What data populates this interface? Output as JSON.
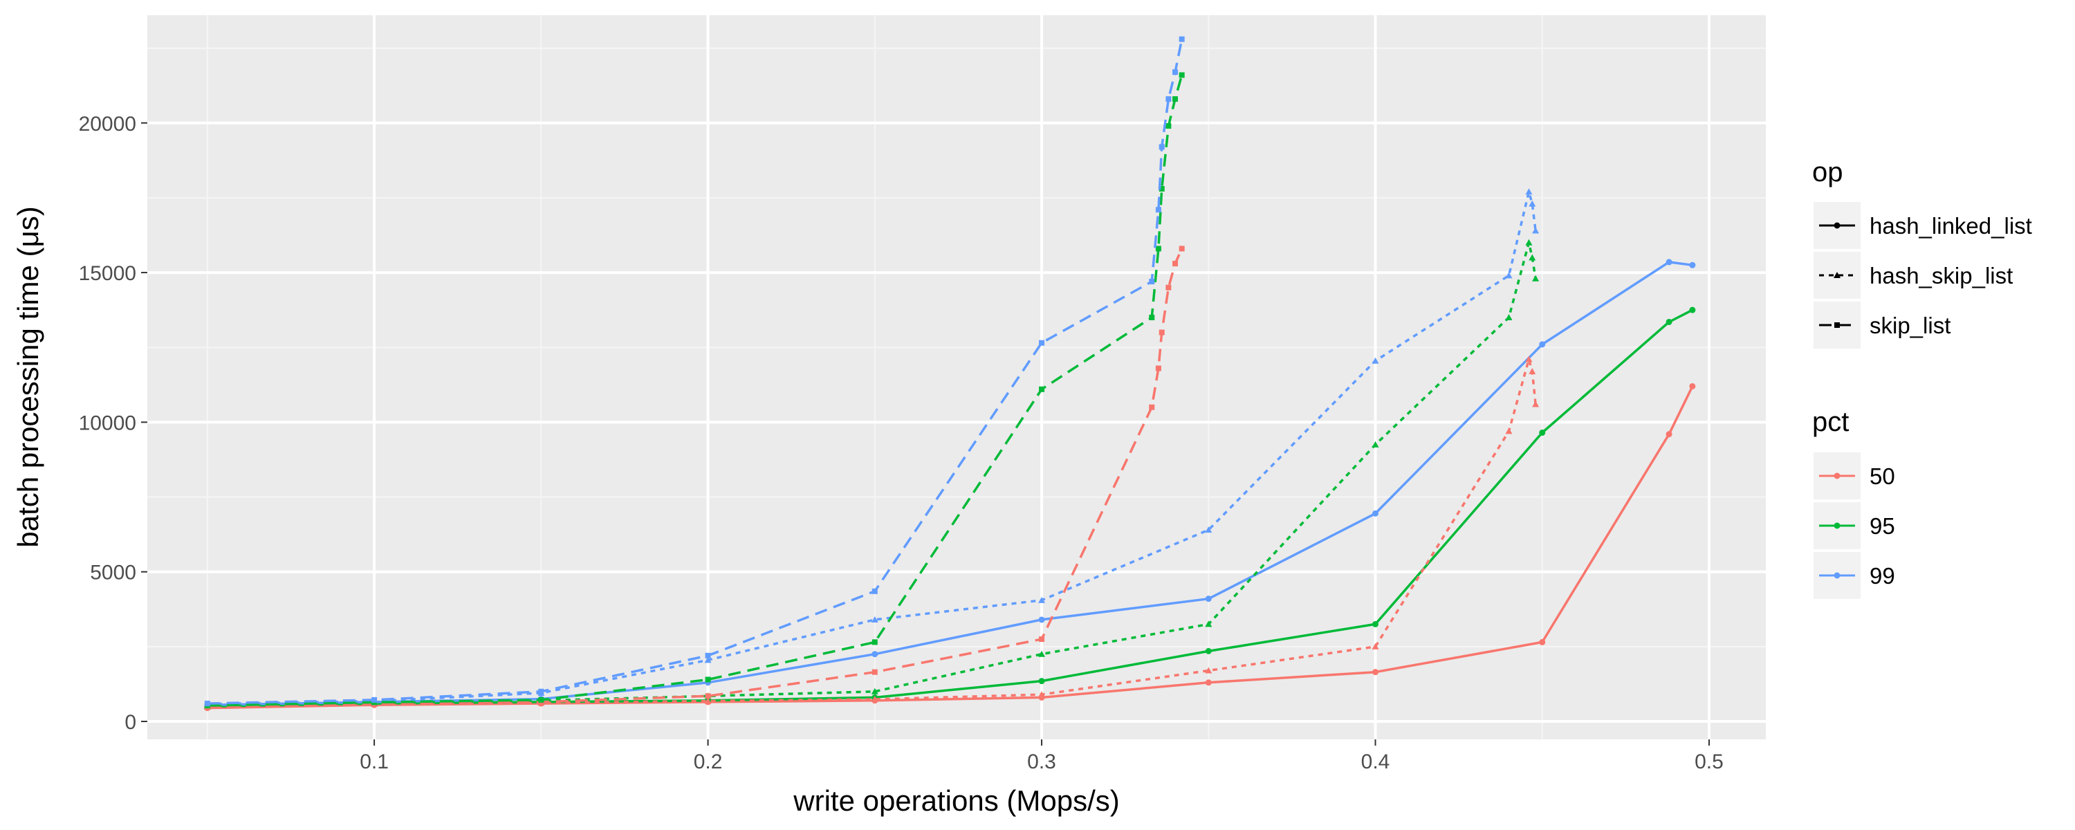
{
  "chart_data": {
    "type": "line",
    "xlabel": "write operations (Mops/s)",
    "ylabel": "batch processing time (μs)",
    "xlim": [
      0.032,
      0.517
    ],
    "ylim": [
      -600,
      23600
    ],
    "x_ticks": [
      0.1,
      0.2,
      0.3,
      0.4,
      0.5
    ],
    "x_tick_labels": [
      "0.1",
      "0.2",
      "0.3",
      "0.4",
      "0.5"
    ],
    "y_ticks": [
      0,
      5000,
      10000,
      15000,
      20000
    ],
    "y_tick_labels": [
      "0",
      "5000",
      "10000",
      "15000",
      "20000"
    ],
    "grid": true,
    "legend_position": "right",
    "legends": [
      {
        "title": "op",
        "entries": [
          {
            "label": "hash_linked_list",
            "linetype": "solid"
          },
          {
            "label": "hash_skip_list",
            "linetype": "dotted"
          },
          {
            "label": "skip_list",
            "linetype": "dashed"
          }
        ]
      },
      {
        "title": "pct",
        "entries": [
          {
            "label": "50",
            "color": "#F8766D"
          },
          {
            "label": "95",
            "color": "#00BA38"
          },
          {
            "label": "99",
            "color": "#619CFF"
          }
        ]
      }
    ],
    "colors": {
      "50": "#F8766D",
      "95": "#00BA38",
      "99": "#619CFF"
    },
    "series": [
      {
        "op": "hash_linked_list",
        "pct": "50",
        "x": [
          0.05,
          0.1,
          0.15,
          0.2,
          0.25,
          0.3,
          0.35,
          0.4,
          0.45,
          0.488,
          0.495
        ],
        "y": [
          450,
          550,
          600,
          650,
          700,
          800,
          1300,
          1650,
          2650,
          9600,
          11200
        ]
      },
      {
        "op": "hash_linked_list",
        "pct": "95",
        "x": [
          0.05,
          0.1,
          0.15,
          0.2,
          0.25,
          0.3,
          0.35,
          0.4,
          0.45,
          0.488,
          0.495
        ],
        "y": [
          500,
          600,
          650,
          700,
          800,
          1350,
          2350,
          3250,
          9650,
          13350,
          13750
        ]
      },
      {
        "op": "hash_linked_list",
        "pct": "99",
        "x": [
          0.05,
          0.1,
          0.15,
          0.2,
          0.25,
          0.3,
          0.35,
          0.4,
          0.45,
          0.488,
          0.495
        ],
        "y": [
          550,
          650,
          750,
          1300,
          2250,
          3400,
          4100,
          6950,
          12600,
          15350,
          15250
        ]
      },
      {
        "op": "hash_skip_list",
        "pct": "50",
        "x": [
          0.05,
          0.1,
          0.15,
          0.2,
          0.25,
          0.3,
          0.35,
          0.4,
          0.44,
          0.446,
          0.447,
          0.448
        ],
        "y": [
          480,
          580,
          620,
          680,
          740,
          900,
          1700,
          2500,
          9700,
          12100,
          11700,
          10600
        ]
      },
      {
        "op": "hash_skip_list",
        "pct": "95",
        "x": [
          0.05,
          0.1,
          0.15,
          0.2,
          0.25,
          0.3,
          0.35,
          0.4,
          0.44,
          0.446,
          0.447,
          0.448
        ],
        "y": [
          520,
          620,
          700,
          850,
          1000,
          2250,
          3250,
          9250,
          13500,
          16000,
          15500,
          14800
        ]
      },
      {
        "op": "hash_skip_list",
        "pct": "99",
        "x": [
          0.05,
          0.1,
          0.15,
          0.2,
          0.25,
          0.3,
          0.35,
          0.4,
          0.44,
          0.446,
          0.447,
          0.448
        ],
        "y": [
          580,
          680,
          950,
          2050,
          3400,
          4050,
          6400,
          12050,
          14900,
          17700,
          17300,
          16400
        ]
      },
      {
        "op": "skip_list",
        "pct": "50",
        "x": [
          0.05,
          0.1,
          0.15,
          0.2,
          0.25,
          0.3,
          0.333,
          0.335,
          0.336,
          0.338,
          0.34,
          0.342
        ],
        "y": [
          500,
          600,
          650,
          850,
          1650,
          2750,
          10500,
          11800,
          13000,
          14500,
          15300,
          15800
        ]
      },
      {
        "op": "skip_list",
        "pct": "95",
        "x": [
          0.05,
          0.1,
          0.15,
          0.2,
          0.25,
          0.3,
          0.333,
          0.335,
          0.336,
          0.338,
          0.34,
          0.342
        ],
        "y": [
          530,
          640,
          720,
          1400,
          2650,
          11100,
          13500,
          15800,
          17800,
          19900,
          20800,
          21600
        ]
      },
      {
        "op": "skip_list",
        "pct": "99",
        "x": [
          0.05,
          0.1,
          0.15,
          0.2,
          0.25,
          0.3,
          0.333,
          0.335,
          0.336,
          0.338,
          0.34,
          0.342
        ],
        "y": [
          600,
          720,
          1000,
          2200,
          4350,
          12650,
          14700,
          17100,
          19200,
          20800,
          21700,
          22800
        ]
      }
    ]
  }
}
